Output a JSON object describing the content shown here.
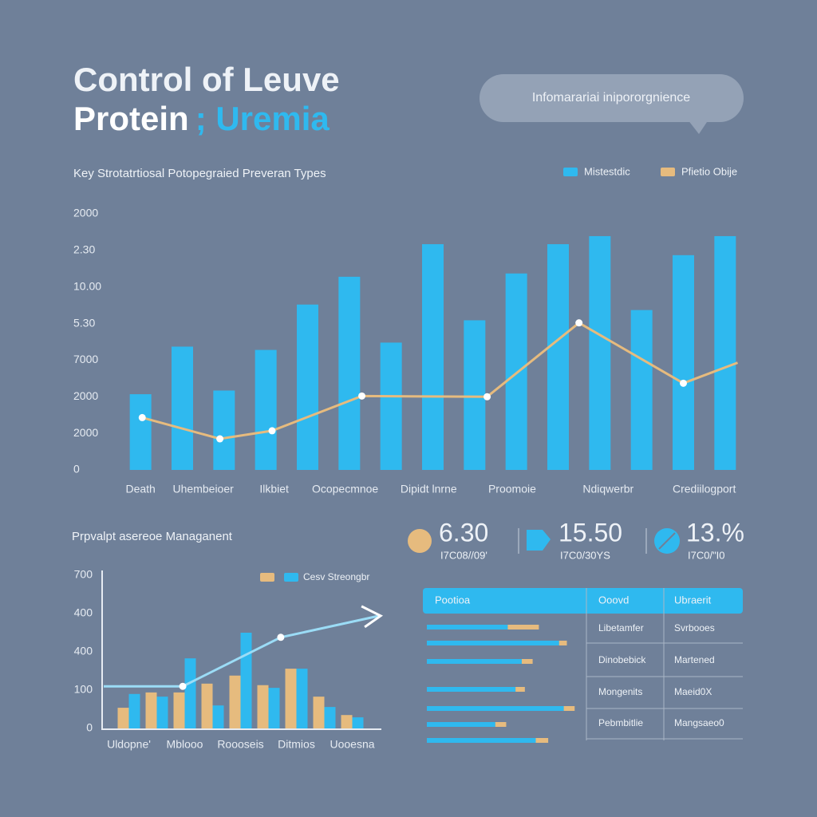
{
  "header": {
    "title_line1": "Control of Leuve",
    "title_line2a": "Protein",
    "title_line2b": "; Uremia",
    "bubble": "Infomarariai inipororgnience"
  },
  "chart_data": [
    {
      "type": "bar",
      "title": "Key Strotatrtiosal Potopegraied Preveran Types",
      "xlim": [
        -0.5,
        14.5
      ],
      "xticks": [
        {
          "value": 0,
          "label": "Death"
        },
        {
          "value": 1.5,
          "label": "Uhembeioer"
        },
        {
          "value": 3.2,
          "label": "Ilkbiet"
        },
        {
          "value": 4.9,
          "label": "Ocopecmnoe"
        },
        {
          "value": 6.9,
          "label": "Dipidt lnrne"
        },
        {
          "value": 8.9,
          "label": "Proomoie"
        },
        {
          "value": 11.2,
          "label": "Ndiqwerbr"
        },
        {
          "value": 13.5,
          "label": "Crediilogport"
        }
      ],
      "ylim": [
        0,
        7
      ],
      "yticks": [
        {
          "value": 0,
          "label": "0"
        },
        {
          "value": 1,
          "label": "2000"
        },
        {
          "value": 2,
          "label": "2000"
        },
        {
          "value": 3,
          "label": "7000"
        },
        {
          "value": 4,
          "label": "5.30"
        },
        {
          "value": 5,
          "label": "10.00"
        },
        {
          "value": 6,
          "label": "2.30"
        },
        {
          "value": 7,
          "label": "2000"
        }
      ],
      "series": [
        {
          "name": "Mistestdic",
          "color": "#2fb9ef",
          "kind": "bar",
          "x": [
            0,
            1,
            2,
            3,
            4,
            5,
            6,
            7,
            8,
            9,
            10,
            11,
            12,
            13,
            14
          ],
          "values": [
            2.07,
            3.37,
            2.17,
            3.28,
            4.52,
            5.28,
            3.48,
            6.17,
            4.09,
            5.37,
            6.17,
            6.39,
            4.37,
            5.87,
            6.39
          ]
        },
        {
          "name": "Pfietio Obije",
          "color": "#e6bb7e",
          "kind": "line",
          "x": [
            0.04,
            1.9,
            3.15,
            5.3,
            8.3,
            10.5,
            13.0,
            14.3
          ],
          "values": [
            1.43,
            0.85,
            1.07,
            2.02,
            2.0,
            4.02,
            2.37,
            2.93
          ]
        }
      ]
    },
    {
      "type": "bar",
      "title": "Prpvalpt asereoe Managanent",
      "legend_label": "Cesv Streongbr",
      "xlim": [
        -1,
        9.5
      ],
      "xticks": [
        {
          "value": 0,
          "label": "Uldopne'"
        },
        {
          "value": 2,
          "label": "Mblooo"
        },
        {
          "value": 4,
          "label": "Roooseis"
        },
        {
          "value": 6,
          "label": "Ditmios"
        },
        {
          "value": 8,
          "label": "Uooesna"
        }
      ],
      "ylim": [
        0,
        4
      ],
      "yticks": [
        {
          "value": 0,
          "label": "0"
        },
        {
          "value": 1,
          "label": "100"
        },
        {
          "value": 2,
          "label": "400"
        },
        {
          "value": 3,
          "label": "400"
        },
        {
          "value": 4,
          "label": "700"
        }
      ],
      "series": [
        {
          "color": "#e6bb7e",
          "kind": "bar",
          "x": [
            0,
            1,
            2,
            3,
            4,
            5,
            6,
            7,
            8
          ],
          "values": [
            0.54,
            0.94,
            0.94,
            1.17,
            1.38,
            1.13,
            1.56,
            0.83,
            0.35
          ]
        },
        {
          "color": "#2fb9ef",
          "kind": "bar",
          "x": [
            0,
            1,
            2,
            3,
            4,
            5,
            6,
            7,
            8
          ],
          "values": [
            0.9,
            0.83,
            1.83,
            0.6,
            2.5,
            1.06,
            1.56,
            0.56,
            0.29
          ]
        },
        {
          "color": "#9bdcf6",
          "kind": "line",
          "x": [
            -0.9,
            1.93,
            5.44,
            8.96
          ],
          "values": [
            1.1,
            1.1,
            2.38,
            2.94
          ]
        }
      ]
    }
  ],
  "kpis": [
    {
      "value": "6.30",
      "sub": "I7C08//09'",
      "color": "#e6bb7e"
    },
    {
      "value": "15.50",
      "sub": "I7C0/30YS",
      "color": "#2fb9ef"
    },
    {
      "value": "13.%",
      "sub": "I7C0/\"I0",
      "color": "#2fb9ef"
    }
  ],
  "table": {
    "headers": [
      "Pootioa",
      "Ooovd",
      "Ubraerit"
    ],
    "xlim": [
      0,
      100
    ],
    "bars": [
      {
        "blue": 52,
        "orange": 20
      },
      {
        "blue": 85,
        "orange": 5
      },
      {
        "blue": 61,
        "orange": 7
      },
      {
        "blue": 57,
        "orange": 6
      },
      {
        "blue": 88,
        "orange": 7
      },
      {
        "blue": 44,
        "orange": 7
      },
      {
        "blue": 70,
        "orange": 8
      }
    ],
    "rows": [
      [
        "Libetamfer",
        "Svrbooes"
      ],
      [
        "Dinobebick",
        "Martened"
      ],
      [
        "Mongenits",
        "Maeid0X"
      ],
      [
        "Pebmbitlie",
        "Mangsaeo0"
      ]
    ]
  }
}
